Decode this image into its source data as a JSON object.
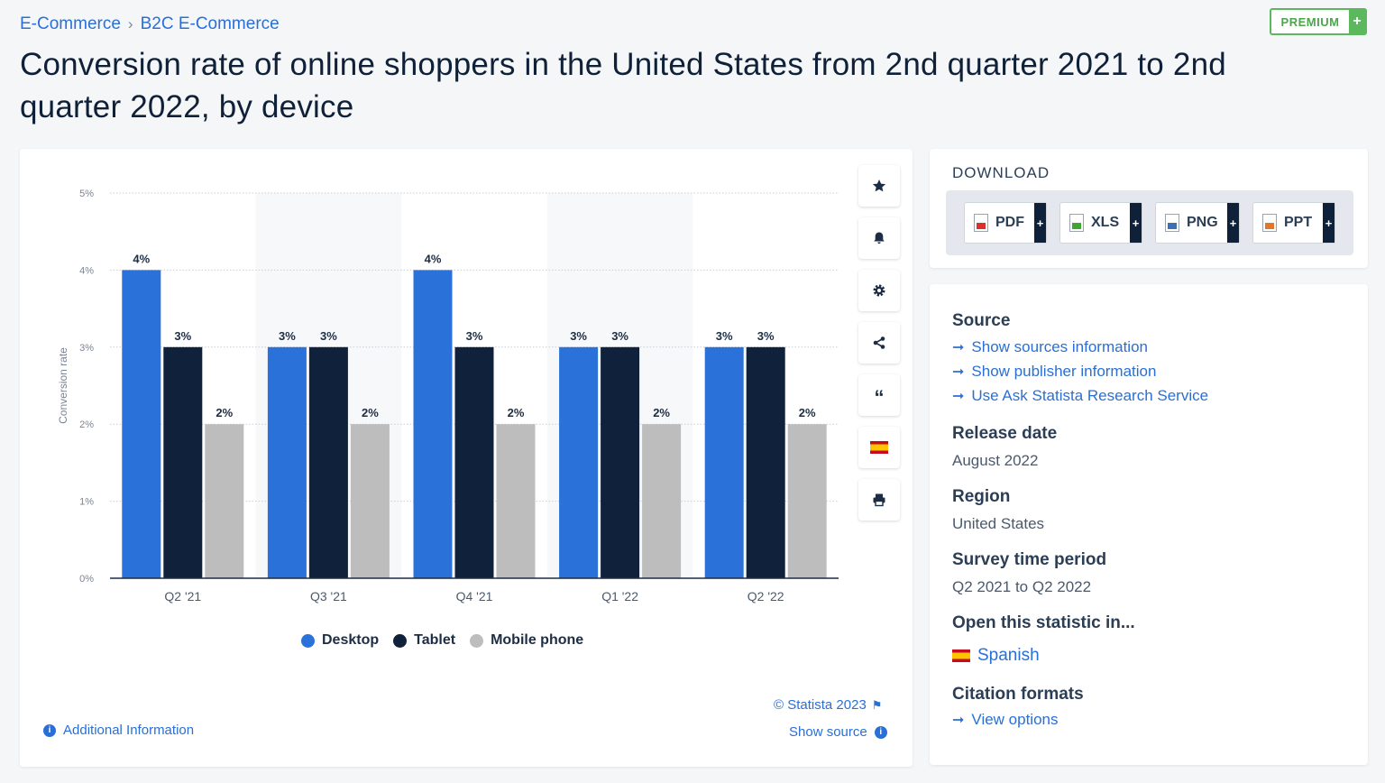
{
  "breadcrumb": [
    "E-Commerce",
    "B2C E-Commerce"
  ],
  "premium_label": "PREMIUM",
  "page_title": "Conversion rate of online shoppers in the United States from 2nd quarter 2021 to 2nd quarter 2022, by device",
  "chart_data": {
    "type": "bar",
    "title": "",
    "xlabel": "",
    "ylabel": "Conversion rate",
    "categories": [
      "Q2 '21",
      "Q3 '21",
      "Q4 '21",
      "Q1 '22",
      "Q2 '22"
    ],
    "series": [
      {
        "name": "Desktop",
        "color": "#2a72d9",
        "values": [
          4,
          3,
          4,
          3,
          3
        ],
        "labels": [
          "4%",
          "3%",
          "4%",
          "3%",
          "3%"
        ]
      },
      {
        "name": "Tablet",
        "color": "#10223b",
        "values": [
          3,
          3,
          3,
          3,
          3
        ],
        "labels": [
          "3%",
          "3%",
          "3%",
          "3%",
          "3%"
        ]
      },
      {
        "name": "Mobile phone",
        "color": "#bdbdbd",
        "values": [
          2,
          2,
          2,
          2,
          2
        ],
        "labels": [
          "2%",
          "2%",
          "2%",
          "2%",
          "2%"
        ]
      }
    ],
    "yticks": [
      "0%",
      "1%",
      "2%",
      "3%",
      "4%",
      "5%"
    ],
    "ylim": [
      0,
      5
    ],
    "grid": true,
    "legend_position": "bottom"
  },
  "tools": [
    "star-icon",
    "bell-icon",
    "gear-icon",
    "share-icon",
    "quote-icon",
    "spanish-flag-icon",
    "print-icon"
  ],
  "copyright": "© Statista 2023",
  "show_source": "Show source",
  "additional_info": "Additional Information",
  "download": {
    "title": "DOWNLOAD",
    "buttons": [
      {
        "label": "PDF",
        "color": "#d9322b"
      },
      {
        "label": "XLS",
        "color": "#3fa535"
      },
      {
        "label": "PNG",
        "color": "#3d6fb5"
      },
      {
        "label": "PPT",
        "color": "#e2762b"
      }
    ]
  },
  "info": {
    "source_heading": "Source",
    "source_links": [
      "Show sources information",
      "Show publisher information",
      "Use Ask Statista Research Service"
    ],
    "release_heading": "Release date",
    "release_value": "August 2022",
    "region_heading": "Region",
    "region_value": "United States",
    "survey_heading": "Survey time period",
    "survey_value": "Q2 2021 to Q2 2022",
    "open_heading": "Open this statistic in...",
    "open_language": "Spanish",
    "citation_heading": "Citation formats",
    "citation_link": "View options"
  }
}
